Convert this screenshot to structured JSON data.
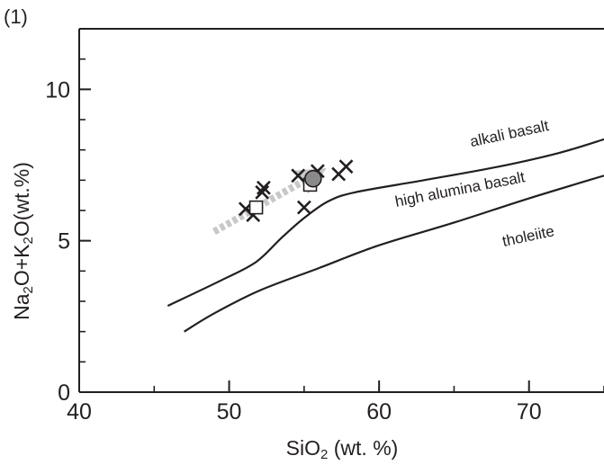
{
  "panel_label": "(1)",
  "chart_data": {
    "type": "scatter",
    "xlabel_main": "SiO",
    "xlabel_sub": "2",
    "xlabel_tail": " (wt. %)",
    "ylabel_parts": [
      "Na",
      "2",
      "O+K",
      "2",
      "O(wt.%)"
    ],
    "xlim": [
      40,
      75
    ],
    "ylim": [
      0,
      12
    ],
    "x_ticks": [
      40,
      50,
      60,
      70
    ],
    "x_tick_labels": [
      "40",
      "50",
      "60",
      "70"
    ],
    "y_ticks": [
      0,
      5,
      10
    ],
    "y_tick_labels": [
      "0",
      "5",
      "10"
    ],
    "minor_x_step": 5,
    "minor_y_step": 1,
    "boundary_curves": [
      {
        "points": [
          [
            45.9,
            2.85
          ],
          [
            49.5,
            3.7
          ],
          [
            51.8,
            4.3
          ],
          [
            53.5,
            5.1
          ],
          [
            55.0,
            5.75
          ],
          [
            56.6,
            6.3
          ],
          [
            58.4,
            6.6
          ],
          [
            63.0,
            7.0
          ],
          [
            68.0,
            7.45
          ],
          [
            72.0,
            7.9
          ],
          [
            75.0,
            8.35
          ]
        ],
        "upper_label": "alkali basalt",
        "lower_label": "high alumina basalt"
      },
      {
        "points": [
          [
            47.0,
            2.0
          ],
          [
            49.0,
            2.6
          ],
          [
            52.0,
            3.35
          ],
          [
            56.0,
            4.1
          ],
          [
            60.0,
            4.85
          ],
          [
            65.0,
            5.6
          ],
          [
            70.0,
            6.4
          ],
          [
            75.0,
            7.15
          ]
        ],
        "lower_label": "tholeiite"
      }
    ],
    "series": [
      {
        "marker": "x",
        "points": [
          [
            51.1,
            6.05
          ],
          [
            51.6,
            5.85
          ],
          [
            52.2,
            6.6
          ],
          [
            52.3,
            6.75
          ],
          [
            54.6,
            7.15
          ],
          [
            55.0,
            6.1
          ],
          [
            55.9,
            7.3
          ],
          [
            57.3,
            7.2
          ],
          [
            57.8,
            7.45
          ]
        ]
      },
      {
        "marker": "open-square",
        "points": [
          [
            51.8,
            6.1
          ],
          [
            55.4,
            6.85
          ]
        ]
      },
      {
        "marker": "filled-circle",
        "points": [
          [
            55.6,
            7.05
          ]
        ]
      }
    ],
    "trend_arrow": {
      "from": [
        49.0,
        5.3
      ],
      "to": [
        56.5,
        7.4
      ],
      "color": "#c8c8c8"
    },
    "colors": {
      "axis": "#231f20",
      "curve": "#231f20",
      "circle_fill": "#8a8a8a",
      "arrow": "#c8c8c8"
    }
  }
}
